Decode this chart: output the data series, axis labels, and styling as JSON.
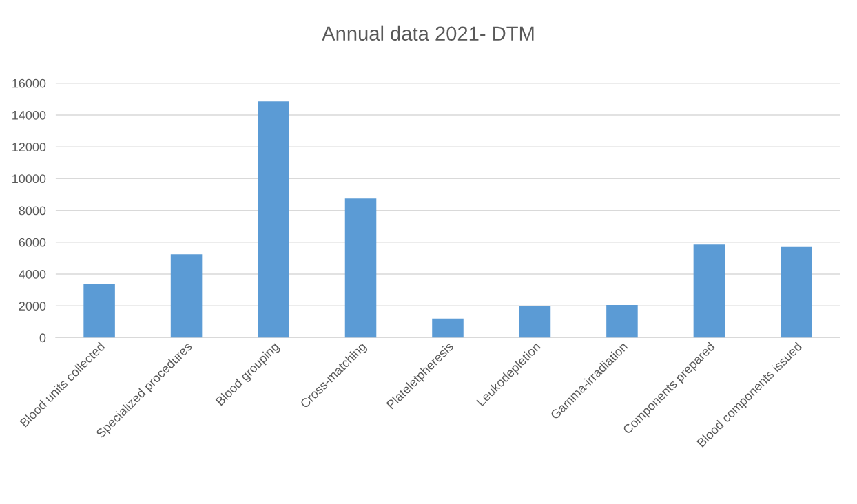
{
  "chart_data": {
    "type": "bar",
    "title": "Annual data 2021- DTM",
    "categories": [
      "Blood units collected",
      "Specialized procedures",
      "Blood grouping",
      "Cross-matching",
      "Plateletpheresis",
      "Leukodepletion",
      "Gamma-irradiation",
      "Components prepared",
      "Blood components issued"
    ],
    "values": [
      3400,
      5250,
      14850,
      8750,
      1200,
      2000,
      2050,
      5850,
      5700
    ],
    "color": "#5b9bd5",
    "ylim": [
      0,
      16000
    ],
    "yticks": [
      0,
      2000,
      4000,
      6000,
      8000,
      10000,
      12000,
      14000,
      16000
    ],
    "grid": "y"
  }
}
